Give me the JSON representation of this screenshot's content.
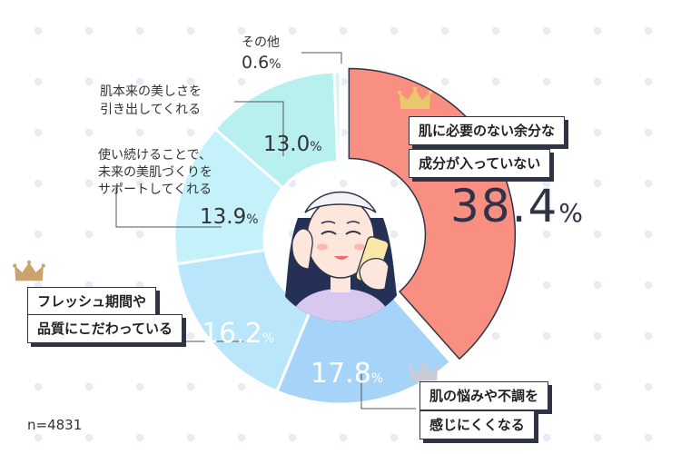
{
  "chart_data": {
    "type": "pie",
    "variant": "donut",
    "categories": [
      "肌に必要のない余分な成分が入っていない",
      "肌の悩みや不調を感じにくくなる",
      "フレッシュ期間や品質にこだわっている",
      "使い続けることで、未来の美肌づくりをサポートしてくれる",
      "肌本来の美しさを引き出してくれる",
      "その他"
    ],
    "values": [
      38.4,
      17.8,
      16.2,
      13.9,
      13.0,
      0.6
    ],
    "unit": "%",
    "colors": [
      "#f88f80",
      "#a6d4f8",
      "#b9e6fa",
      "#c5f1fa",
      "#b8efef",
      "#d2f4f4"
    ],
    "sample_size": "n=4831"
  },
  "labels": {
    "top1_line1": "肌に必要のない余分な",
    "top1_line2": "成分が入っていない",
    "top1_value": "38.4",
    "top2_line1": "肌の悩みや不調を",
    "top2_line2": "感じにくくなる",
    "top2_value": "17.8",
    "top3_line1": "フレッシュ期間や",
    "top3_line2": "品質にこだわっている",
    "top3_value": "16.2",
    "cat4_line1": "使い続けることで、",
    "cat4_line2": "未来の美肌づくりを",
    "cat4_line3": "サポートしてくれる",
    "cat4_value": "13.9",
    "cat5_line1": "肌本来の美しさを",
    "cat5_line2": "引き出してくれる",
    "cat5_value": "13.0",
    "cat6_line1": "その他",
    "cat6_value": "0.6",
    "unit": "%"
  },
  "sample_size": "n=4831",
  "crowns": {
    "gold": "gold-crown-icon",
    "bronze": "bronze-crown-icon",
    "silver": "silver-crown-icon"
  }
}
